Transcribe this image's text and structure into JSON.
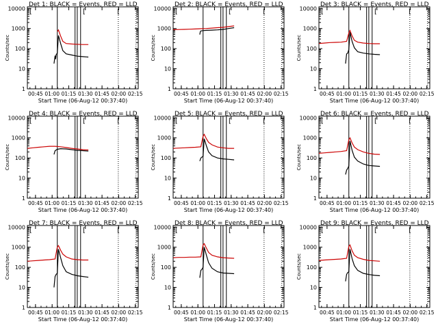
{
  "chart_data": [
    {
      "type": "line",
      "title": "Det 1: BLACK = Events, RED = LLD",
      "xlabel": "Start Time (06-Aug-12 00:37:40)",
      "ylabel": "Counts/sec",
      "yscale": "log",
      "ylim": [
        1,
        12000
      ],
      "xlim_min": [
        0,
        100
      ],
      "ytick_labels": [
        "1",
        "10",
        "100",
        "1000",
        "10000"
      ],
      "xtick_labels": [
        "00:45",
        "01:00",
        "01:15",
        "01:30",
        "01:45",
        "02:00",
        "02:15"
      ],
      "solid_vlines_min": [
        27,
        43,
        45,
        48
      ],
      "dotted_vlines_min": [
        82,
        98
      ],
      "corner_marks": [
        "[",
        "[",
        "["
      ],
      "series": [
        {
          "color": "#000000",
          "x_min": [
            24,
            25,
            25.5,
            26,
            27,
            28,
            30,
            32,
            35,
            40,
            45,
            50,
            55
          ],
          "values": [
            18,
            45,
            30,
            50,
            60,
            450,
            180,
            80,
            55,
            48,
            42,
            40,
            38
          ]
        },
        {
          "color": "#cc0000",
          "x_min": [
            27,
            28,
            30,
            32,
            35,
            40,
            45,
            50,
            55
          ],
          "values": [
            700,
            850,
            420,
            230,
            180,
            170,
            165,
            160,
            160
          ]
        }
      ]
    },
    {
      "type": "line",
      "title": "Det 2: BLACK = Events, RED = LLD",
      "xlabel": "Start Time (06-Aug-12 00:37:40)",
      "ylabel": "Counts/sec",
      "yscale": "log",
      "ylim": [
        1,
        12000
      ],
      "xlim_min": [
        0,
        100
      ],
      "ytick_labels": [
        "1",
        "10",
        "100",
        "1000",
        "10000"
      ],
      "xtick_labels": [
        "00:45",
        "01:00",
        "01:15",
        "01:30",
        "01:45",
        "02:00",
        "02:15"
      ],
      "solid_vlines_min": [
        27,
        43,
        45,
        48
      ],
      "dotted_vlines_min": [
        82,
        98
      ],
      "corner_marks": [
        "[",
        "[",
        "["
      ],
      "series": [
        {
          "color": "#000000",
          "x_min": [
            24,
            24.5,
            25,
            27,
            30,
            35,
            40,
            45,
            50,
            55
          ],
          "values": [
            500,
            700,
            760,
            790,
            810,
            830,
            860,
            900,
            1000,
            1100
          ]
        },
        {
          "color": "#cc0000",
          "x_min": [
            0,
            5,
            10,
            15,
            20,
            25,
            30,
            35,
            40,
            45,
            50,
            55
          ],
          "values": [
            880,
            890,
            910,
            930,
            950,
            980,
            1000,
            1050,
            1100,
            1150,
            1250,
            1350
          ]
        }
      ]
    },
    {
      "type": "line",
      "title": "Det 3: BLACK = Events, RED = LLD",
      "xlabel": "Start Time (06-Aug-12 00:37:40)",
      "ylabel": "Counts/sec",
      "yscale": "log",
      "ylim": [
        1,
        12000
      ],
      "xlim_min": [
        0,
        100
      ],
      "ytick_labels": [
        "1",
        "10",
        "100",
        "1000",
        "10000"
      ],
      "xtick_labels": [
        "00:45",
        "01:00",
        "01:15",
        "01:30",
        "01:45",
        "02:00",
        "02:15"
      ],
      "solid_vlines_min": [
        27,
        43,
        45,
        48
      ],
      "dotted_vlines_min": [
        82,
        98
      ],
      "corner_marks": [
        "[",
        "[",
        "["
      ],
      "series": [
        {
          "color": "#000000",
          "x_min": [
            24,
            25,
            26,
            27,
            28,
            30,
            32,
            35,
            40,
            45,
            50,
            55
          ],
          "values": [
            18,
            55,
            60,
            90,
            650,
            220,
            110,
            70,
            60,
            55,
            52,
            50
          ]
        },
        {
          "color": "#cc0000",
          "x_min": [
            0,
            5,
            10,
            15,
            20,
            25,
            27,
            28,
            30,
            32,
            35,
            40,
            45,
            50,
            55
          ],
          "values": [
            180,
            190,
            200,
            205,
            210,
            230,
            600,
            800,
            420,
            260,
            210,
            190,
            180,
            175,
            175
          ]
        }
      ]
    },
    {
      "type": "line",
      "title": "Det 4: BLACK = Events, RED = LLD",
      "xlabel": "Start Time (06-Aug-12 00:37:40)",
      "ylabel": "Counts/sec",
      "yscale": "log",
      "ylim": [
        1,
        12000
      ],
      "xlim_min": [
        0,
        100
      ],
      "ytick_labels": [
        "1",
        "10",
        "100",
        "1000",
        "10000"
      ],
      "xtick_labels": [
        "00:45",
        "01:00",
        "01:15",
        "01:30",
        "01:45",
        "02:00",
        "02:15"
      ],
      "solid_vlines_min": [
        27,
        43,
        45,
        48
      ],
      "dotted_vlines_min": [
        82,
        98
      ],
      "corner_marks": [
        "[",
        "[",
        "["
      ],
      "series": [
        {
          "color": "#000000",
          "x_min": [
            24,
            25,
            27,
            30,
            35,
            40,
            45,
            50,
            55
          ],
          "values": [
            150,
            230,
            270,
            290,
            280,
            260,
            240,
            230,
            220
          ]
        },
        {
          "color": "#cc0000",
          "x_min": [
            0,
            5,
            10,
            15,
            20,
            25,
            30,
            35,
            40,
            45,
            50,
            55
          ],
          "values": [
            300,
            320,
            340,
            360,
            380,
            380,
            360,
            330,
            300,
            280,
            260,
            250
          ]
        }
      ]
    },
    {
      "type": "line",
      "title": "Det 5: BLACK = Events, RED = LLD",
      "xlabel": "Start Time (06-Aug-12 00:37:40)",
      "ylabel": "Counts/sec",
      "yscale": "log",
      "ylim": [
        1,
        12000
      ],
      "xlim_min": [
        0,
        100
      ],
      "ytick_labels": [
        "1",
        "10",
        "100",
        "1000",
        "10000"
      ],
      "xtick_labels": [
        "00:45",
        "01:00",
        "01:15",
        "01:30",
        "01:45",
        "02:00",
        "02:15"
      ],
      "solid_vlines_min": [
        27,
        43,
        45,
        48
      ],
      "dotted_vlines_min": [
        82,
        98
      ],
      "corner_marks": [
        "[",
        "[",
        "["
      ],
      "series": [
        {
          "color": "#000000",
          "x_min": [
            24,
            25,
            26,
            27,
            28,
            30,
            32,
            35,
            40,
            45,
            50,
            55
          ],
          "values": [
            70,
            100,
            110,
            120,
            900,
            400,
            200,
            130,
            100,
            90,
            85,
            80
          ]
        },
        {
          "color": "#cc0000",
          "x_min": [
            0,
            5,
            10,
            15,
            20,
            25,
            27,
            28,
            30,
            32,
            35,
            40,
            45,
            50,
            55
          ],
          "values": [
            300,
            310,
            320,
            330,
            340,
            360,
            1200,
            1500,
            900,
            600,
            450,
            350,
            320,
            300,
            300
          ]
        }
      ]
    },
    {
      "type": "line",
      "title": "Det 6: BLACK = Events, RED = LLD",
      "xlabel": "Start Time (06-Aug-12 00:37:40)",
      "ylabel": "Counts/sec",
      "yscale": "log",
      "ylim": [
        1,
        12000
      ],
      "xlim_min": [
        0,
        100
      ],
      "ytick_labels": [
        "1",
        "10",
        "100",
        "1000",
        "10000"
      ],
      "xtick_labels": [
        "00:45",
        "01:00",
        "01:15",
        "01:30",
        "01:45",
        "02:00",
        "02:15"
      ],
      "solid_vlines_min": [
        27,
        43,
        45,
        48
      ],
      "dotted_vlines_min": [
        82,
        98
      ],
      "corner_marks": [
        "[",
        "[",
        "["
      ],
      "series": [
        {
          "color": "#000000",
          "x_min": [
            24,
            25,
            26,
            27,
            28,
            30,
            32,
            35,
            40,
            45,
            50,
            55
          ],
          "values": [
            15,
            25,
            30,
            40,
            700,
            230,
            110,
            70,
            50,
            42,
            40,
            38
          ]
        },
        {
          "color": "#cc0000",
          "x_min": [
            0,
            5,
            10,
            15,
            20,
            25,
            27,
            28,
            30,
            32,
            35,
            40,
            45,
            50,
            55
          ],
          "values": [
            170,
            180,
            190,
            200,
            210,
            230,
            800,
            1000,
            550,
            350,
            260,
            200,
            170,
            155,
            150
          ]
        }
      ]
    },
    {
      "type": "line",
      "title": "Det 7: BLACK = Events, RED = LLD",
      "xlabel": "Start Time (06-Aug-12 00:37:40)",
      "ylabel": "Counts/sec",
      "yscale": "log",
      "ylim": [
        1,
        12000
      ],
      "xlim_min": [
        0,
        100
      ],
      "ytick_labels": [
        "1",
        "10",
        "100",
        "1000",
        "10000"
      ],
      "xtick_labels": [
        "00:45",
        "01:00",
        "01:15",
        "01:30",
        "01:45",
        "02:00",
        "02:15"
      ],
      "solid_vlines_min": [
        27,
        43,
        45,
        48
      ],
      "dotted_vlines_min": [
        82,
        98
      ],
      "corner_marks": [
        "[",
        "[",
        "["
      ],
      "series": [
        {
          "color": "#000000",
          "x_min": [
            24,
            25,
            26,
            27,
            28,
            30,
            32,
            35,
            40,
            45,
            50,
            55
          ],
          "values": [
            10,
            35,
            45,
            50,
            800,
            300,
            120,
            60,
            45,
            38,
            35,
            32
          ]
        },
        {
          "color": "#cc0000",
          "x_min": [
            0,
            5,
            10,
            15,
            20,
            25,
            27,
            28,
            30,
            32,
            35,
            40,
            45,
            50,
            55
          ],
          "values": [
            200,
            210,
            220,
            230,
            240,
            260,
            1000,
            1200,
            700,
            450,
            330,
            260,
            240,
            230,
            230
          ]
        }
      ]
    },
    {
      "type": "line",
      "title": "Det 8: BLACK = Events, RED = LLD",
      "xlabel": "Start Time (06-Aug-12 00:37:40)",
      "ylabel": "Counts/sec",
      "yscale": "log",
      "ylim": [
        1,
        12000
      ],
      "xlim_min": [
        0,
        100
      ],
      "ytick_labels": [
        "1",
        "10",
        "100",
        "1000",
        "10000"
      ],
      "xtick_labels": [
        "00:45",
        "01:00",
        "01:15",
        "01:30",
        "01:45",
        "02:00",
        "02:15"
      ],
      "solid_vlines_min": [
        27,
        43,
        45,
        48
      ],
      "dotted_vlines_min": [
        82,
        98
      ],
      "corner_marks": [
        "[",
        "[",
        "["
      ],
      "series": [
        {
          "color": "#000000",
          "x_min": [
            24,
            25,
            26,
            27,
            28,
            30,
            32,
            35,
            40,
            45,
            50,
            55
          ],
          "values": [
            30,
            70,
            80,
            100,
            1000,
            400,
            170,
            90,
            60,
            52,
            50,
            48
          ]
        },
        {
          "color": "#cc0000",
          "x_min": [
            0,
            5,
            10,
            15,
            20,
            25,
            27,
            28,
            30,
            32,
            35,
            40,
            45,
            50,
            55
          ],
          "values": [
            300,
            310,
            310,
            320,
            320,
            330,
            1300,
            1500,
            900,
            550,
            400,
            330,
            300,
            290,
            280
          ]
        }
      ]
    },
    {
      "type": "line",
      "title": "Det 9: BLACK = Events, RED = LLD",
      "xlabel": "Start Time (06-Aug-12 00:37:40)",
      "ylabel": "Counts/sec",
      "yscale": "log",
      "ylim": [
        1,
        12000
      ],
      "xlim_min": [
        0,
        100
      ],
      "ytick_labels": [
        "1",
        "10",
        "100",
        "1000",
        "10000"
      ],
      "xtick_labels": [
        "00:45",
        "01:00",
        "01:15",
        "01:30",
        "01:45",
        "02:00",
        "02:15"
      ],
      "solid_vlines_min": [
        27,
        43,
        45,
        48
      ],
      "dotted_vlines_min": [
        82,
        98
      ],
      "corner_marks": [
        "[",
        "[",
        "["
      ],
      "series": [
        {
          "color": "#000000",
          "x_min": [
            24,
            25,
            26,
            27,
            28,
            30,
            32,
            35,
            40,
            45,
            50,
            55
          ],
          "values": [
            20,
            45,
            55,
            60,
            800,
            260,
            120,
            70,
            50,
            44,
            40,
            38
          ]
        },
        {
          "color": "#cc0000",
          "x_min": [
            0,
            5,
            10,
            15,
            20,
            25,
            27,
            28,
            30,
            32,
            35,
            40,
            45,
            50,
            55
          ],
          "values": [
            220,
            230,
            240,
            250,
            260,
            280,
            1100,
            1300,
            650,
            400,
            300,
            250,
            220,
            210,
            200
          ]
        }
      ]
    }
  ]
}
